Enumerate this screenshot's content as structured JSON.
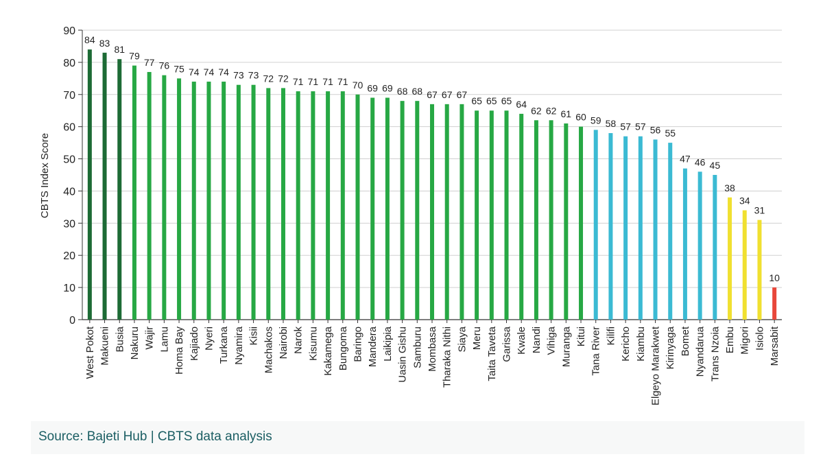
{
  "chart_data": {
    "type": "bar",
    "ylabel": "CBTS Index Score",
    "xlabel": "",
    "ylim": [
      0,
      90
    ],
    "yticks": [
      0,
      10,
      20,
      30,
      40,
      50,
      60,
      70,
      80,
      90
    ],
    "grid": true,
    "categories": [
      "West Pokot",
      "Makueni",
      "Busia",
      "Nakuru",
      "Wajir",
      "Lamu",
      "Homa Bay",
      "Kajiado",
      "Nyeri",
      "Turkana",
      "Nyamira",
      "Kisii",
      "Machakos",
      "Nairobi",
      "Narok",
      "Kisumu",
      "Kakamega",
      "Bungoma",
      "Baringo",
      "Mandera",
      "Laikipia",
      "Uasin Gishu",
      "Samburu",
      "Mombasa",
      "Tharaka Nithi",
      "Siaya",
      "Meru",
      "Taita Taveta",
      "Garissa",
      "Kwale",
      "Nandi",
      "Vihiga",
      "Muranga",
      "Kitui",
      "Tana River",
      "Kilifi",
      "Kericho",
      "Kiambu",
      "Elgeyo Marakwet",
      "Kirinyaga",
      "Bomet",
      "Nyandarua",
      "Trans Nzoia",
      "Embu",
      "Migori",
      "Isiolo",
      "Marsabit"
    ],
    "values": [
      84,
      83,
      81,
      79,
      77,
      76,
      75,
      74,
      74,
      74,
      73,
      73,
      72,
      72,
      71,
      71,
      71,
      71,
      70,
      69,
      69,
      68,
      68,
      67,
      67,
      67,
      65,
      65,
      65,
      64,
      62,
      62,
      61,
      60,
      59,
      58,
      57,
      57,
      56,
      55,
      47,
      46,
      45,
      38,
      34,
      31,
      10
    ],
    "labels": [
      "84",
      "83",
      "81",
      "79",
      "77",
      "76",
      "75",
      "74",
      "74",
      "74",
      "73",
      "73",
      "72",
      "72",
      "71",
      "71",
      "71",
      "71",
      "70",
      "69",
      "69",
      "68",
      "68",
      "67",
      "67",
      "67",
      "65",
      "65",
      "65",
      "64",
      "62",
      "62",
      "61",
      "60",
      "59",
      "58",
      "57",
      "57",
      "56",
      "55",
      "47",
      "46",
      "45",
      "38",
      "34",
      "31",
      "10"
    ],
    "bands": [
      {
        "min": 80,
        "color": "#1d6b35"
      },
      {
        "min": 60,
        "color": "#27a844"
      },
      {
        "min": 40,
        "color": "#3bbad3"
      },
      {
        "min": 20,
        "color": "#f0e030"
      },
      {
        "min": 0,
        "color": "#e8473a"
      }
    ]
  },
  "source": "Source: Bajeti Hub | CBTS data analysis"
}
